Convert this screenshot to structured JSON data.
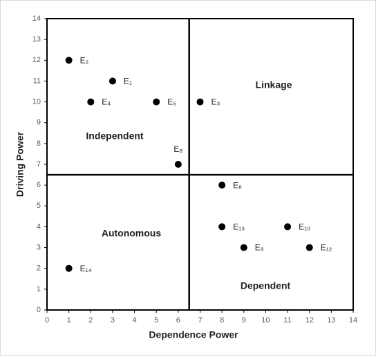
{
  "chart_data": {
    "type": "scatter",
    "xlabel": "Dependence Power",
    "ylabel": "Driving Power",
    "xlim": [
      0,
      14
    ],
    "ylim": [
      0,
      14
    ],
    "xticks": [
      0,
      1,
      2,
      3,
      4,
      5,
      6,
      7,
      8,
      9,
      10,
      11,
      12,
      13,
      14
    ],
    "yticks": [
      0,
      1,
      2,
      3,
      4,
      5,
      6,
      7,
      8,
      9,
      10,
      11,
      12,
      13,
      14
    ],
    "x_divider": 6.5,
    "y_divider": 6.5,
    "color": "#000000",
    "points": {
      "labels": [
        "E₂",
        "E₁",
        "E₄",
        "E₅",
        "E₃",
        "E₈",
        "E₆",
        "E₁₃",
        "E₁₀",
        "E₉",
        "E₁₂",
        "E₁₄"
      ],
      "x": [
        1,
        3,
        2,
        5,
        7,
        6,
        8,
        8,
        11,
        9,
        12,
        1
      ],
      "y": [
        12,
        11,
        10,
        10,
        10,
        7,
        6,
        4,
        4,
        3,
        3,
        2
      ]
    },
    "quadrants": [
      "Independent",
      "Linkage",
      "Autonomous",
      "Dependent"
    ]
  }
}
